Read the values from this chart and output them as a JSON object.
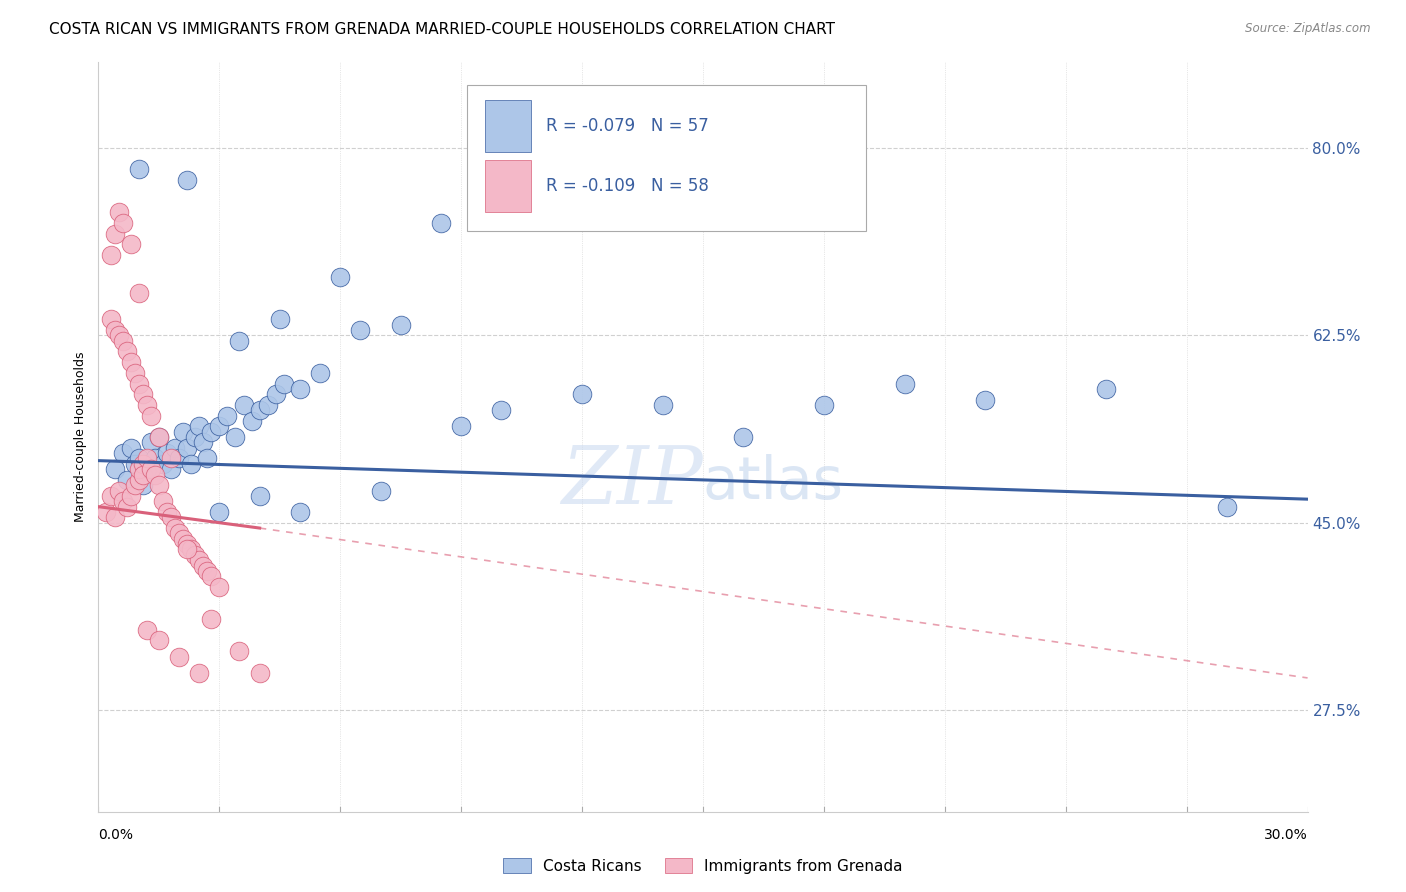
{
  "title": "COSTA RICAN VS IMMIGRANTS FROM GRENADA MARRIED-COUPLE HOUSEHOLDS CORRELATION CHART",
  "source": "Source: ZipAtlas.com",
  "ylabel": "Married-couple Households",
  "legend_blue_r": "-0.079",
  "legend_blue_n": "57",
  "legend_pink_r": "-0.109",
  "legend_pink_n": "58",
  "legend_label_blue": "Costa Ricans",
  "legend_label_pink": "Immigrants from Grenada",
  "blue_color": "#adc6e8",
  "pink_color": "#f4b8c8",
  "blue_line_color": "#3a5fa0",
  "pink_line_color": "#d9607a",
  "watermark_zip": "ZIP",
  "watermark_atlas": "atlas",
  "xmin": 0.0,
  "xmax": 0.3,
  "ymin": 18.0,
  "ymax": 88.0,
  "ytick_vals": [
    27.5,
    45.0,
    62.5,
    80.0
  ],
  "grid_color": "#d0d0d0",
  "background_color": "#ffffff",
  "title_fontsize": 11,
  "axis_label_fontsize": 9,
  "tick_fontsize": 10,
  "legend_fontsize": 12,
  "blue_trend_x0": 0.0,
  "blue_trend_y0": 50.8,
  "blue_trend_x1": 0.3,
  "blue_trend_y1": 47.2,
  "pink_trend_x0": 0.0,
  "pink_trend_y0": 46.5,
  "pink_trend_x1_solid": 0.04,
  "pink_trend_y1_solid": 44.5,
  "pink_trend_x1_dash": 0.3,
  "pink_trend_y1_dash": 30.5
}
